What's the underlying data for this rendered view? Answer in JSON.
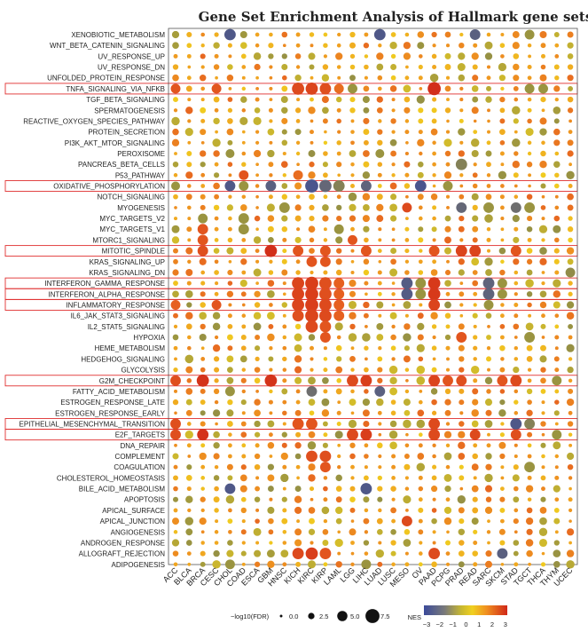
{
  "chart_data": {
    "type": "dot-matrix",
    "title": "Gene Set Enrichment Analysis of Hallmark gene sets",
    "rows": [
      "XENOBIOTIC_METABOLISM",
      "WNT_BETA_CATENIN_SIGNALING",
      "UV_RESPONSE_UP",
      "UV_RESPONSE_DN",
      "UNFOLDED_PROTEIN_RESPONSE",
      "TNFA_SIGNALING_VIA_NFKB",
      "TGF_BETA_SIGNALING",
      "SPERMATOGENESIS",
      "REACTIVE_OXYGEN_SPECIES_PATHWAY",
      "PROTEIN_SECRETION",
      "PI3K_AKT_MTOR_SIGNALING",
      "PEROXISOME",
      "PANCREAS_BETA_CELLS",
      "P53_PATHWAY",
      "OXIDATIVE_PHOSPHORYLATION",
      "NOTCH_SIGNALING",
      "MYOGENESIS",
      "MYC_TARGETS_V2",
      "MYC_TARGETS_V1",
      "MTORC1_SIGNALING",
      "MITOTIC_SPINDLE",
      "KRAS_SIGNALING_UP",
      "KRAS_SIGNALING_DN",
      "INTERFERON_GAMMA_RESPONSE",
      "INTERFERON_ALPHA_RESPONSE",
      "INFLAMMATORY_RESPONSE",
      "IL6_JAK_STAT3_SIGNALING",
      "IL2_STAT5_SIGNALING",
      "HYPOXIA",
      "HEME_METABOLISM",
      "HEDGEHOG_SIGNALING",
      "GLYCOLYSIS",
      "G2M_CHECKPOINT",
      "FATTY_ACID_METABOLISM",
      "ESTROGEN_RESPONSE_LATE",
      "ESTROGEN_RESPONSE_EARLY",
      "EPITHELIAL_MESENCHYMAL_TRANSITION",
      "E2F_TARGETS",
      "DNA_REPAIR",
      "COMPLEMENT",
      "COAGULATION",
      "CHOLESTEROL_HOMEOSTASIS",
      "BILE_ACID_METABOLISM",
      "APOPTOSIS",
      "APICAL_SURFACE",
      "APICAL_JUNCTION",
      "ANGIOGENESIS",
      "ANDROGEN_RESPONSE",
      "ALLOGRAFT_REJECTION",
      "ADIPOGENESIS"
    ],
    "columns": [
      "ACC",
      "BLCA",
      "BRCA",
      "CESC",
      "CHOL",
      "COAD",
      "ESCA",
      "GBM",
      "HNSC",
      "KICH",
      "KIRC",
      "KIRP",
      "LAML",
      "LGG",
      "LIHC",
      "LUAD",
      "LUSC",
      "MESO",
      "OV",
      "PAAD",
      "PCPG",
      "PRAD",
      "READ",
      "SARC",
      "SKCM",
      "STAD",
      "TGCT",
      "THCA",
      "THYM",
      "UCEC"
    ],
    "highlighted_rows": [
      "TNFA_SIGNALING_VIA_NFKB",
      "OXIDATIVE_PHOSPHORYLATION",
      "MITOTIC_SPINDLE",
      "INTERFERON_GAMMA_RESPONSE",
      "INTERFERON_ALPHA_RESPONSE",
      "INFLAMMATORY_RESPONSE",
      "G2M_CHECKPOINT",
      "EPITHELIAL_MESENCHYMAL_TRANSITION",
      "E2F_TARGETS"
    ],
    "highlight_color": "#e03030",
    "size_legend": {
      "title": "−log10(FDR)",
      "values": [
        0.0,
        2.5,
        5.0,
        7.5
      ],
      "labels": [
        "0.0",
        "2.5",
        "5.0",
        "7.5"
      ]
    },
    "color_legend": {
      "title": "NES",
      "range": [
        -3,
        3
      ],
      "ticks": [
        "−3",
        "−2",
        "−1",
        "0",
        "1",
        "2",
        "3"
      ]
    },
    "color_scale": [
      "#3b4a9a",
      "#6e6e6e",
      "#9a9440",
      "#f0d020",
      "#f0a020",
      "#e66020",
      "#d02818"
    ],
    "strong_cells": [
      {
        "r": 0,
        "c": 4,
        "nes": -2.6,
        "size": 5.5
      },
      {
        "r": 0,
        "c": 15,
        "nes": -2.6,
        "size": 5.5
      },
      {
        "r": 0,
        "c": 22,
        "nes": -2.4,
        "size": 5
      },
      {
        "r": 0,
        "c": 26,
        "nes": -1,
        "size": 4.5
      },
      {
        "r": 5,
        "c": 0,
        "nes": 2.2,
        "size": 4.5
      },
      {
        "r": 5,
        "c": 3,
        "nes": 2.2,
        "size": 4.5
      },
      {
        "r": 5,
        "c": 9,
        "nes": 2.4,
        "size": 6
      },
      {
        "r": 5,
        "c": 10,
        "nes": 2.5,
        "size": 6
      },
      {
        "r": 5,
        "c": 11,
        "nes": 2.3,
        "size": 5.5
      },
      {
        "r": 5,
        "c": 12,
        "nes": 1.8,
        "size": 4.5
      },
      {
        "r": 5,
        "c": 13,
        "nes": -1,
        "size": 4.5
      },
      {
        "r": 5,
        "c": 19,
        "nes": 2.9,
        "size": 6.5
      },
      {
        "r": 5,
        "c": 26,
        "nes": -1,
        "size": 4.5
      },
      {
        "r": 5,
        "c": 27,
        "nes": -1,
        "size": 4.5
      },
      {
        "r": 11,
        "c": 4,
        "nes": -1,
        "size": 4
      },
      {
        "r": 11,
        "c": 15,
        "nes": -1,
        "size": 4
      },
      {
        "r": 12,
        "c": 21,
        "nes": -1.5,
        "size": 5.5
      },
      {
        "r": 13,
        "c": 5,
        "nes": 2.2,
        "size": 4.5
      },
      {
        "r": 13,
        "c": 9,
        "nes": 1.8,
        "size": 4.5
      },
      {
        "r": 14,
        "c": 0,
        "nes": -1,
        "size": 4
      },
      {
        "r": 14,
        "c": 4,
        "nes": -2.6,
        "size": 5
      },
      {
        "r": 14,
        "c": 5,
        "nes": -1,
        "size": 4.5
      },
      {
        "r": 14,
        "c": 7,
        "nes": -2.4,
        "size": 5
      },
      {
        "r": 14,
        "c": 10,
        "nes": -2.7,
        "size": 6.5
      },
      {
        "r": 14,
        "c": 11,
        "nes": -2.2,
        "size": 6
      },
      {
        "r": 14,
        "c": 12,
        "nes": -1.5,
        "size": 5.5
      },
      {
        "r": 14,
        "c": 14,
        "nes": -2.3,
        "size": 5
      },
      {
        "r": 14,
        "c": 18,
        "nes": -2.7,
        "size": 5.5
      },
      {
        "r": 14,
        "c": 20,
        "nes": -1,
        "size": 4.5
      },
      {
        "r": 16,
        "c": 8,
        "nes": -1,
        "size": 5
      },
      {
        "r": 16,
        "c": 17,
        "nes": 2.4,
        "size": 4.5
      },
      {
        "r": 16,
        "c": 21,
        "nes": -2.2,
        "size": 5
      },
      {
        "r": 16,
        "c": 23,
        "nes": -1,
        "size": 5
      },
      {
        "r": 16,
        "c": 25,
        "nes": -2,
        "size": 5
      },
      {
        "r": 16,
        "c": 26,
        "nes": -1,
        "size": 5
      },
      {
        "r": 17,
        "c": 2,
        "nes": -1,
        "size": 4.5
      },
      {
        "r": 17,
        "c": 5,
        "nes": -1,
        "size": 5
      },
      {
        "r": 18,
        "c": 2,
        "nes": 2.2,
        "size": 5
      },
      {
        "r": 18,
        "c": 5,
        "nes": -1,
        "size": 5
      },
      {
        "r": 18,
        "c": 12,
        "nes": -1,
        "size": 4.5
      },
      {
        "r": 19,
        "c": 2,
        "nes": 2.2,
        "size": 5
      },
      {
        "r": 19,
        "c": 13,
        "nes": 2.2,
        "size": 4.5
      },
      {
        "r": 20,
        "c": 2,
        "nes": 2.3,
        "size": 5
      },
      {
        "r": 20,
        "c": 7,
        "nes": 2.9,
        "size": 6
      },
      {
        "r": 20,
        "c": 9,
        "nes": 2.2,
        "size": 5
      },
      {
        "r": 20,
        "c": 11,
        "nes": 2.2,
        "size": 5
      },
      {
        "r": 20,
        "c": 14,
        "nes": 2.2,
        "size": 5
      },
      {
        "r": 20,
        "c": 19,
        "nes": 2.2,
        "size": 5
      },
      {
        "r": 20,
        "c": 21,
        "nes": 2.5,
        "size": 5.5
      },
      {
        "r": 20,
        "c": 22,
        "nes": 2.5,
        "size": 5.5
      },
      {
        "r": 20,
        "c": 25,
        "nes": 2.2,
        "size": 5
      },
      {
        "r": 21,
        "c": 10,
        "nes": 2.2,
        "size": 5
      },
      {
        "r": 21,
        "c": 11,
        "nes": 2.2,
        "size": 5
      },
      {
        "r": 22,
        "c": 29,
        "nes": -1.2,
        "size": 4.5
      },
      {
        "r": 23,
        "c": 9,
        "nes": 2.5,
        "size": 6
      },
      {
        "r": 23,
        "c": 10,
        "nes": 2.6,
        "size": 6.5
      },
      {
        "r": 23,
        "c": 11,
        "nes": 2.3,
        "size": 6
      },
      {
        "r": 23,
        "c": 12,
        "nes": 2,
        "size": 5
      },
      {
        "r": 23,
        "c": 17,
        "nes": -2.5,
        "size": 5.5
      },
      {
        "r": 23,
        "c": 18,
        "nes": -1,
        "size": 5
      },
      {
        "r": 23,
        "c": 19,
        "nes": 2.7,
        "size": 6
      },
      {
        "r": 23,
        "c": 23,
        "nes": -2.3,
        "size": 5.5
      },
      {
        "r": 23,
        "c": 24,
        "nes": -1,
        "size": 4.5
      },
      {
        "r": 24,
        "c": 9,
        "nes": 2.5,
        "size": 6
      },
      {
        "r": 24,
        "c": 10,
        "nes": 2.6,
        "size": 6.5
      },
      {
        "r": 24,
        "c": 11,
        "nes": 2.3,
        "size": 6
      },
      {
        "r": 24,
        "c": 12,
        "nes": 2,
        "size": 5
      },
      {
        "r": 24,
        "c": 17,
        "nes": -2.5,
        "size": 5.5
      },
      {
        "r": 24,
        "c": 18,
        "nes": -1,
        "size": 5
      },
      {
        "r": 24,
        "c": 19,
        "nes": 2.7,
        "size": 6
      },
      {
        "r": 24,
        "c": 23,
        "nes": -2.3,
        "size": 5.5
      },
      {
        "r": 24,
        "c": 24,
        "nes": -1,
        "size": 4.5
      },
      {
        "r": 25,
        "c": 0,
        "nes": 2,
        "size": 4.5
      },
      {
        "r": 25,
        "c": 3,
        "nes": 2.2,
        "size": 4.5
      },
      {
        "r": 25,
        "c": 9,
        "nes": 2.5,
        "size": 6
      },
      {
        "r": 25,
        "c": 10,
        "nes": 2.6,
        "size": 6.5
      },
      {
        "r": 25,
        "c": 11,
        "nes": 2.4,
        "size": 6
      },
      {
        "r": 25,
        "c": 12,
        "nes": 2,
        "size": 5
      },
      {
        "r": 25,
        "c": 19,
        "nes": 2.5,
        "size": 5.5
      },
      {
        "r": 25,
        "c": 23,
        "nes": -1,
        "size": 4.5
      },
      {
        "r": 26,
        "c": 9,
        "nes": 2.3,
        "size": 5.5
      },
      {
        "r": 26,
        "c": 10,
        "nes": 2.5,
        "size": 6.5
      },
      {
        "r": 26,
        "c": 11,
        "nes": 2.4,
        "size": 6
      },
      {
        "r": 26,
        "c": 12,
        "nes": 2,
        "size": 5
      },
      {
        "r": 27,
        "c": 10,
        "nes": 2.4,
        "size": 6
      },
      {
        "r": 27,
        "c": 11,
        "nes": 2.2,
        "size": 5.5
      },
      {
        "r": 28,
        "c": 11,
        "nes": 2.2,
        "size": 5
      },
      {
        "r": 28,
        "c": 21,
        "nes": 2.2,
        "size": 5
      },
      {
        "r": 28,
        "c": 26,
        "nes": -1,
        "size": 5
      },
      {
        "r": 32,
        "c": 0,
        "nes": 2.3,
        "size": 5
      },
      {
        "r": 32,
        "c": 2,
        "nes": 2.8,
        "size": 6
      },
      {
        "r": 32,
        "c": 7,
        "nes": 2.8,
        "size": 6
      },
      {
        "r": 32,
        "c": 13,
        "nes": 2.4,
        "size": 5.5
      },
      {
        "r": 32,
        "c": 14,
        "nes": 2.6,
        "size": 5.5
      },
      {
        "r": 32,
        "c": 19,
        "nes": 2.5,
        "size": 5.5
      },
      {
        "r": 32,
        "c": 20,
        "nes": 2.2,
        "size": 5
      },
      {
        "r": 32,
        "c": 21,
        "nes": 2.3,
        "size": 5
      },
      {
        "r": 32,
        "c": 24,
        "nes": 2.2,
        "size": 5
      },
      {
        "r": 32,
        "c": 25,
        "nes": 2.4,
        "size": 5.5
      },
      {
        "r": 32,
        "c": 28,
        "nes": -1,
        "size": 4.5
      },
      {
        "r": 33,
        "c": 4,
        "nes": -1,
        "size": 4.5
      },
      {
        "r": 33,
        "c": 10,
        "nes": -2,
        "size": 5
      },
      {
        "r": 33,
        "c": 15,
        "nes": -2.4,
        "size": 5
      },
      {
        "r": 36,
        "c": 0,
        "nes": 2.3,
        "size": 5
      },
      {
        "r": 36,
        "c": 9,
        "nes": 2.2,
        "size": 5.5
      },
      {
        "r": 36,
        "c": 10,
        "nes": 2.2,
        "size": 5.5
      },
      {
        "r": 36,
        "c": 19,
        "nes": 2.4,
        "size": 5.5
      },
      {
        "r": 36,
        "c": 25,
        "nes": -2.6,
        "size": 5.5
      },
      {
        "r": 36,
        "c": 26,
        "nes": -1.5,
        "size": 5
      },
      {
        "r": 37,
        "c": 0,
        "nes": 2.3,
        "size": 5
      },
      {
        "r": 37,
        "c": 2,
        "nes": 2.8,
        "size": 5.5
      },
      {
        "r": 37,
        "c": 13,
        "nes": 2.4,
        "size": 5.5
      },
      {
        "r": 37,
        "c": 14,
        "nes": 2.6,
        "size": 5.5
      },
      {
        "r": 37,
        "c": 19,
        "nes": 2.4,
        "size": 5.5
      },
      {
        "r": 37,
        "c": 22,
        "nes": 2.4,
        "size": 5
      },
      {
        "r": 37,
        "c": 25,
        "nes": 2.3,
        "size": 5
      },
      {
        "r": 37,
        "c": 28,
        "nes": -1,
        "size": 4.5
      },
      {
        "r": 39,
        "c": 10,
        "nes": 2.3,
        "size": 5.5
      },
      {
        "r": 39,
        "c": 11,
        "nes": 2.3,
        "size": 5.5
      },
      {
        "r": 40,
        "c": 11,
        "nes": 2.2,
        "size": 5
      },
      {
        "r": 40,
        "c": 26,
        "nes": -1,
        "size": 5
      },
      {
        "r": 42,
        "c": 4,
        "nes": -2.6,
        "size": 5
      },
      {
        "r": 42,
        "c": 14,
        "nes": -2.6,
        "size": 5.5
      },
      {
        "r": 45,
        "c": 17,
        "nes": 2.4,
        "size": 5
      },
      {
        "r": 48,
        "c": 9,
        "nes": 2.4,
        "size": 5.5
      },
      {
        "r": 48,
        "c": 10,
        "nes": 2.6,
        "size": 6
      },
      {
        "r": 48,
        "c": 11,
        "nes": 2.2,
        "size": 5.5
      },
      {
        "r": 48,
        "c": 19,
        "nes": 2.4,
        "size": 5.5
      },
      {
        "r": 48,
        "c": 24,
        "nes": -2.4,
        "size": 5
      },
      {
        "r": 49,
        "c": 4,
        "nes": -1,
        "size": 4.5
      },
      {
        "r": 49,
        "c": 14,
        "nes": -1,
        "size": 4.5
      }
    ]
  }
}
